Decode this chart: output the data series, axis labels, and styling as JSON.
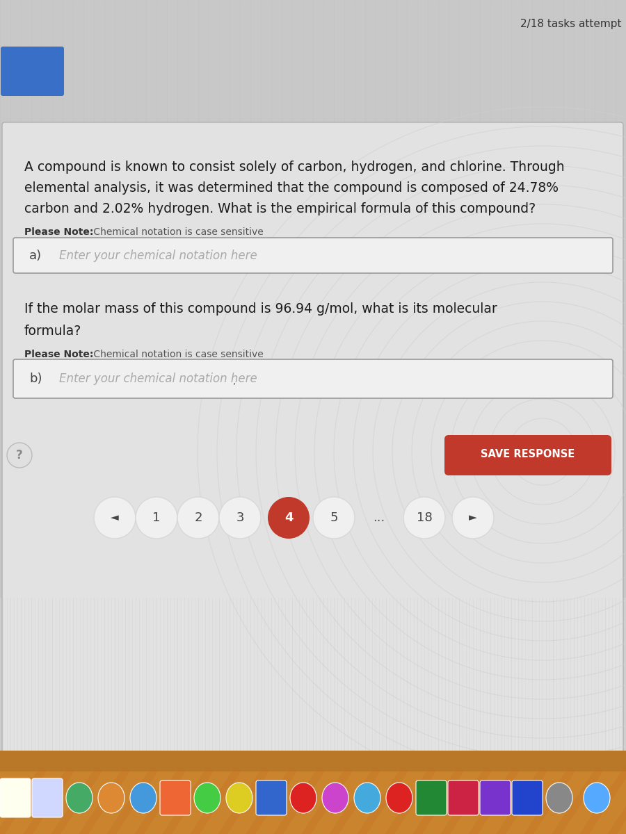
{
  "bg_color": "#c8c8c8",
  "stripe_color": "#bbbbbb",
  "header_text": "2/18 tasks attempt",
  "header_text_color": "#333333",
  "blue_rect_color": "#3a6fc8",
  "card_bg": "#e2e2e2",
  "card_edge": "#b0b0b0",
  "card_inner_bg": "#e8e8e8",
  "swirl_color": "#d0d0d0",
  "question_text_color": "#1a1a1a",
  "question_fontsize": 13.5,
  "please_note_bold": "Please Note:",
  "please_note_rest": " Chemical notation is case sensitive",
  "please_note_fontsize": 10,
  "input_bg": "#f0f0f0",
  "input_edge": "#999999",
  "input_a_label": "a)",
  "input_b_label": "b)",
  "placeholder_text": "Enter your chemical notation here",
  "placeholder_color": "#aaaaaa",
  "save_btn_text": "SAVE RESPONSE",
  "save_btn_color": "#c0392b",
  "save_btn_text_color": "#ffffff",
  "nav_bg": "#e8e8e8",
  "nav_edge": "#cccccc",
  "nav_active_bg": "#c0392b",
  "nav_active_text": "#ffffff",
  "nav_text_color": "#444444",
  "nav_arrow_color": "#666666",
  "qmark_bg": "#e0e0e0",
  "qmark_edge": "#bbbbbb",
  "qmark_text": "#888888",
  "dock_bg_top": "#b07828",
  "dock_bg_mid": "#d08828",
  "dock_bg_bot": "#a06018",
  "q1_line1": "A compound is known to consist solely of carbon, hydrogen, and chlorine. Through",
  "q1_line2": "elemental analysis, it was determined that the compound is composed of 24.78%",
  "q1_line3": "carbon and 2.02% hydrogen. What is the empirical formula of this compound?",
  "q2_line1": "If the molar mass of this compound is 96.94 g/mol, what is its molecular",
  "q2_line2": "formula?",
  "nav_items": [
    "◄",
    "1",
    "2",
    "3",
    "4",
    "5",
    "...",
    "18",
    "►"
  ]
}
